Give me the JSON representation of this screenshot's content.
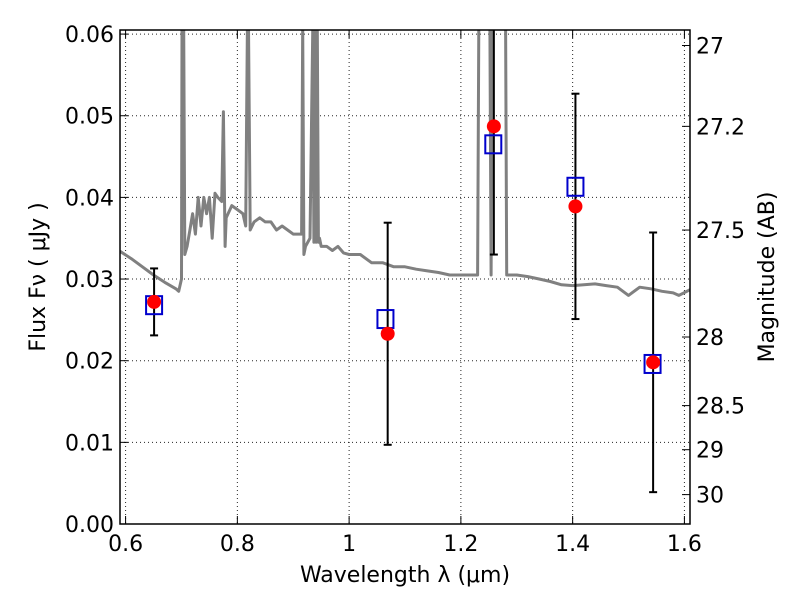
{
  "chart_data": {
    "type": "scatter",
    "title": "",
    "xlabel": "Wavelength  λ (μm)",
    "ylabel": "Flux  Fν  ( μJy )",
    "y2label": "Magnitude (AB)",
    "xlim": [
      0.59,
      1.61
    ],
    "ylim": [
      0.0,
      0.0605
    ],
    "grid": true,
    "x_ticks": [
      {
        "value": 0.6,
        "label": "0.6"
      },
      {
        "value": 0.8,
        "label": "0.8"
      },
      {
        "value": 1.0,
        "label": "1"
      },
      {
        "value": 1.2,
        "label": "1.2"
      },
      {
        "value": 1.4,
        "label": "1.4"
      },
      {
        "value": 1.6,
        "label": "1.6"
      }
    ],
    "y_ticks": [
      {
        "value": 0.0,
        "label": "0.00"
      },
      {
        "value": 0.01,
        "label": "0.01"
      },
      {
        "value": 0.02,
        "label": "0.02"
      },
      {
        "value": 0.03,
        "label": "0.03"
      },
      {
        "value": 0.04,
        "label": "0.04"
      },
      {
        "value": 0.05,
        "label": "0.05"
      },
      {
        "value": 0.06,
        "label": "0.06"
      }
    ],
    "y2_ticks": [
      {
        "flux": 0.0586,
        "label": "27"
      },
      {
        "flux": 0.0487,
        "label": "27.2"
      },
      {
        "flux": 0.036,
        "label": "27.5"
      },
      {
        "flux": 0.0229,
        "label": "28"
      },
      {
        "flux": 0.0145,
        "label": "28.5"
      },
      {
        "flux": 0.0091,
        "label": "29"
      },
      {
        "flux": 0.0036,
        "label": "30"
      }
    ],
    "series": [
      {
        "type": "line",
        "color": "#808080",
        "points": [
          [
            0.59,
            0.0334
          ],
          [
            0.61,
            0.0325
          ],
          [
            0.63,
            0.0315
          ],
          [
            0.65,
            0.0305
          ],
          [
            0.67,
            0.0296
          ],
          [
            0.69,
            0.0288
          ],
          [
            0.695,
            0.0285
          ],
          [
            0.7,
            0.03
          ],
          [
            0.701,
            0.061
          ],
          [
            0.704,
            0.061
          ],
          [
            0.706,
            0.033
          ],
          [
            0.71,
            0.034
          ],
          [
            0.715,
            0.036
          ],
          [
            0.72,
            0.038
          ],
          [
            0.725,
            0.0355
          ],
          [
            0.73,
            0.04
          ],
          [
            0.735,
            0.0365
          ],
          [
            0.74,
            0.04
          ],
          [
            0.745,
            0.038
          ],
          [
            0.75,
            0.04
          ],
          [
            0.755,
            0.035
          ],
          [
            0.76,
            0.0405
          ],
          [
            0.765,
            0.04
          ],
          [
            0.772,
            0.0395
          ],
          [
            0.775,
            0.0505
          ],
          [
            0.778,
            0.034
          ],
          [
            0.78,
            0.0375
          ],
          [
            0.79,
            0.039
          ],
          [
            0.8,
            0.0385
          ],
          [
            0.81,
            0.038
          ],
          [
            0.815,
            0.0365
          ],
          [
            0.818,
            0.061
          ],
          [
            0.82,
            0.061
          ],
          [
            0.823,
            0.036
          ],
          [
            0.83,
            0.037
          ],
          [
            0.84,
            0.0375
          ],
          [
            0.85,
            0.037
          ],
          [
            0.86,
            0.037
          ],
          [
            0.87,
            0.036
          ],
          [
            0.88,
            0.0365
          ],
          [
            0.89,
            0.036
          ],
          [
            0.9,
            0.0355
          ],
          [
            0.91,
            0.0355
          ],
          [
            0.915,
            0.0355
          ],
          [
            0.917,
            0.061
          ],
          [
            0.919,
            0.033
          ],
          [
            0.922,
            0.034
          ],
          [
            0.93,
            0.035
          ],
          [
            0.935,
            0.061
          ],
          [
            0.937,
            0.0345
          ],
          [
            0.939,
            0.061
          ],
          [
            0.941,
            0.0345
          ],
          [
            0.943,
            0.061
          ],
          [
            0.945,
            0.0345
          ],
          [
            0.947,
            0.035
          ],
          [
            0.95,
            0.034
          ],
          [
            0.96,
            0.034
          ],
          [
            0.97,
            0.0335
          ],
          [
            0.98,
            0.034
          ],
          [
            0.99,
            0.0332
          ],
          [
            1.0,
            0.033
          ],
          [
            1.02,
            0.033
          ],
          [
            1.04,
            0.032
          ],
          [
            1.06,
            0.032
          ],
          [
            1.08,
            0.0315
          ],
          [
            1.1,
            0.0315
          ],
          [
            1.12,
            0.0312
          ],
          [
            1.14,
            0.031
          ],
          [
            1.16,
            0.0308
          ],
          [
            1.18,
            0.0305
          ],
          [
            1.2,
            0.0305
          ],
          [
            1.22,
            0.0305
          ],
          [
            1.23,
            0.0305
          ],
          [
            1.232,
            0.061
          ],
          [
            1.252,
            0.061
          ],
          [
            1.254,
            0.0305
          ],
          [
            1.256,
            0.061
          ],
          [
            1.28,
            0.061
          ],
          [
            1.282,
            0.0305
          ],
          [
            1.3,
            0.0305
          ],
          [
            1.32,
            0.0303
          ],
          [
            1.34,
            0.03
          ],
          [
            1.36,
            0.0297
          ],
          [
            1.38,
            0.0293
          ],
          [
            1.4,
            0.0292
          ],
          [
            1.42,
            0.0293
          ],
          [
            1.44,
            0.0294
          ],
          [
            1.46,
            0.0292
          ],
          [
            1.48,
            0.029
          ],
          [
            1.5,
            0.028
          ],
          [
            1.52,
            0.029
          ],
          [
            1.54,
            0.0288
          ],
          [
            1.56,
            0.0285
          ],
          [
            1.58,
            0.0283
          ],
          [
            1.59,
            0.028
          ],
          [
            1.61,
            0.0287
          ]
        ]
      },
      {
        "type": "errorbar",
        "color": "#000000",
        "points": [
          {
            "x": 0.651,
            "y": 0.0272,
            "yerr": 0.0041
          },
          {
            "x": 1.069,
            "y": 0.0233,
            "yerr": 0.0136
          },
          {
            "x": 1.259,
            "y": 0.0487,
            "yerr": 0.0157
          },
          {
            "x": 1.405,
            "y": 0.0389,
            "yerr": 0.0138
          },
          {
            "x": 1.544,
            "y": 0.0198,
            "yerr": 0.0159
          }
        ]
      },
      {
        "type": "marker-square",
        "color": "#0000cc",
        "points": [
          [
            0.651,
            0.0268
          ],
          [
            1.065,
            0.0251
          ],
          [
            1.258,
            0.0465
          ],
          [
            1.405,
            0.0413
          ],
          [
            1.543,
            0.0196
          ]
        ]
      },
      {
        "type": "marker-circle",
        "color": "#ff0000",
        "points": [
          [
            0.651,
            0.0272
          ],
          [
            1.069,
            0.0233
          ],
          [
            1.259,
            0.0487
          ],
          [
            1.405,
            0.0389
          ],
          [
            1.544,
            0.0198
          ]
        ]
      }
    ]
  }
}
